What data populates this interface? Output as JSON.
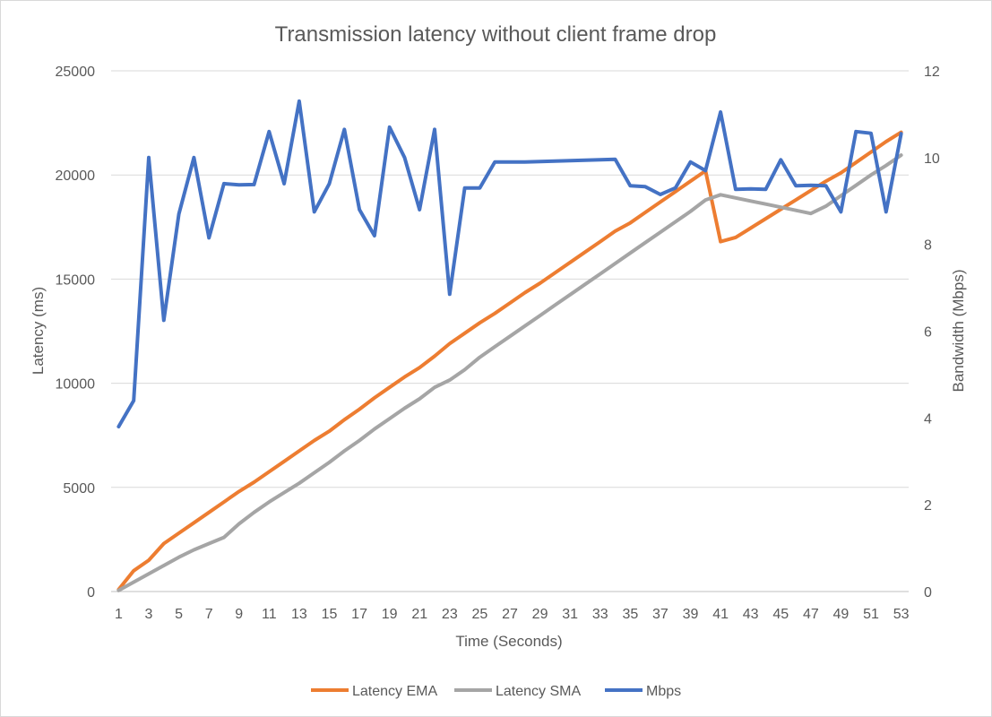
{
  "chart_data": {
    "type": "line",
    "title": "Transmission latency without client frame drop",
    "xlabel": "Time (Seconds)",
    "ylabel": "Latency (ms)",
    "y2label": "Bandwidth (Mbps)",
    "ylim": [
      0,
      25000
    ],
    "y2lim": [
      0,
      12
    ],
    "yticks": [
      0,
      5000,
      10000,
      15000,
      20000,
      25000
    ],
    "y2ticks": [
      0,
      2,
      4,
      6,
      8,
      10,
      12
    ],
    "xticks": [
      1,
      3,
      5,
      7,
      9,
      11,
      13,
      15,
      17,
      19,
      21,
      23,
      25,
      27,
      29,
      31,
      33,
      35,
      37,
      39,
      41,
      43,
      45,
      47,
      49,
      51,
      53
    ],
    "grid": true,
    "legend_position": "bottom",
    "x": [
      1,
      2,
      3,
      4,
      5,
      6,
      7,
      8,
      9,
      10,
      11,
      12,
      13,
      14,
      15,
      16,
      17,
      18,
      19,
      20,
      21,
      22,
      23,
      24,
      25,
      26,
      27,
      28,
      29,
      30,
      31,
      32,
      33,
      34,
      35,
      36,
      37,
      38,
      39,
      40,
      41,
      42,
      43,
      44,
      45,
      46,
      47,
      48,
      49,
      50,
      51,
      52,
      53
    ],
    "series": [
      {
        "name": "Latency EMA",
        "axis": "left",
        "color": "#ed7d31",
        "values": [
          100,
          1000,
          1500,
          2300,
          2800,
          3300,
          3800,
          4300,
          4800,
          5250,
          5750,
          6250,
          6750,
          7250,
          7700,
          8250,
          8750,
          9300,
          9800,
          10300,
          10750,
          11300,
          11900,
          12400,
          12900,
          13350,
          13850,
          14350,
          14800,
          15300,
          15800,
          16300,
          16800,
          17300,
          17700,
          18200,
          18700,
          19200,
          19700,
          20200,
          16800,
          17000,
          17450,
          17900,
          18350,
          18800,
          19250,
          19700,
          20100,
          20600,
          21100,
          21600,
          22050
        ]
      },
      {
        "name": "Latency SMA",
        "axis": "left",
        "color": "#a5a5a5",
        "values": [
          50,
          450,
          850,
          1250,
          1650,
          2000,
          2300,
          2600,
          3250,
          3800,
          4300,
          4750,
          5200,
          5700,
          6200,
          6750,
          7250,
          7800,
          8300,
          8800,
          9250,
          9800,
          10150,
          10650,
          11250,
          11750,
          12250,
          12750,
          13250,
          13750,
          14250,
          14750,
          15250,
          15750,
          16250,
          16750,
          17250,
          17750,
          18250,
          18800,
          19050,
          18900,
          18750,
          18600,
          18450,
          18300,
          18150,
          18500,
          19000,
          19500,
          20000,
          20450,
          20950
        ]
      },
      {
        "name": "Mbps",
        "axis": "right",
        "color": "#4472c4",
        "values": [
          3.8,
          4.4,
          10.0,
          6.25,
          8.7,
          10.0,
          8.15,
          9.4,
          9.37,
          9.38,
          10.6,
          9.4,
          11.3,
          8.75,
          9.4,
          10.65,
          8.8,
          8.2,
          10.7,
          10.0,
          8.8,
          10.65,
          6.85,
          9.3,
          9.3,
          9.9,
          9.9,
          9.9,
          9.91,
          9.92,
          9.93,
          9.94,
          9.95,
          9.96,
          9.35,
          9.33,
          9.15,
          9.3,
          9.9,
          9.7,
          11.05,
          9.27,
          9.28,
          9.27,
          9.95,
          9.35,
          9.36,
          9.35,
          8.75,
          10.6,
          10.56,
          8.75,
          10.55
        ]
      }
    ]
  }
}
